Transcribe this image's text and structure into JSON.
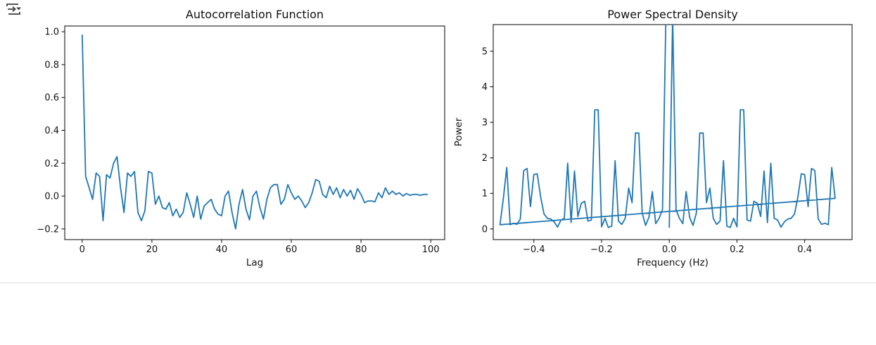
{
  "toolbar": {
    "execute_icon": "execute-cell-dropdown-icon"
  },
  "accent_color": "#1f77b4",
  "chart_data": [
    {
      "type": "line",
      "title": "Autocorrelation Function",
      "xlabel": "Lag",
      "ylabel": "",
      "xlim": [
        -5,
        104
      ],
      "ylim": [
        -0.265,
        1.035
      ],
      "xticks": [
        0,
        20,
        40,
        60,
        80,
        100
      ],
      "xtick_labels": [
        "0",
        "20",
        "40",
        "60",
        "80",
        "100"
      ],
      "yticks": [
        1.0,
        0.8,
        0.6,
        0.4,
        0.2,
        0.0,
        -0.2
      ],
      "ytick_labels": [
        "1.0",
        "0.8",
        "0.6",
        "0.4",
        "0.2",
        "0.0",
        "−0.2"
      ],
      "grid": false,
      "legend": null,
      "line_color": "#1f77b4",
      "x": [
        0,
        1,
        2,
        3,
        4,
        5,
        6,
        7,
        8,
        9,
        10,
        11,
        12,
        13,
        14,
        15,
        16,
        17,
        18,
        19,
        20,
        21,
        22,
        23,
        24,
        25,
        26,
        27,
        28,
        29,
        30,
        31,
        32,
        33,
        34,
        35,
        36,
        37,
        38,
        39,
        40,
        41,
        42,
        43,
        44,
        45,
        46,
        47,
        48,
        49,
        50,
        51,
        52,
        53,
        54,
        55,
        56,
        57,
        58,
        59,
        60,
        61,
        62,
        63,
        64,
        65,
        66,
        67,
        68,
        69,
        70,
        71,
        72,
        73,
        74,
        75,
        76,
        77,
        78,
        79,
        80,
        81,
        82,
        83,
        84,
        85,
        86,
        87,
        88,
        89,
        90,
        91,
        92,
        93,
        94,
        95,
        96,
        97,
        98,
        99
      ],
      "y": [
        0.98,
        0.12,
        0.05,
        -0.02,
        0.14,
        0.12,
        -0.15,
        0.13,
        0.11,
        0.2,
        0.24,
        0.05,
        -0.1,
        0.14,
        0.12,
        0.15,
        -0.1,
        -0.15,
        -0.09,
        0.15,
        0.14,
        -0.05,
        0.0,
        -0.07,
        -0.08,
        -0.04,
        -0.12,
        -0.08,
        -0.13,
        -0.1,
        0.02,
        -0.05,
        -0.13,
        0.0,
        -0.14,
        -0.06,
        -0.04,
        -0.02,
        -0.08,
        -0.11,
        -0.12,
        0.0,
        0.03,
        -0.1,
        -0.2,
        -0.05,
        0.04,
        -0.08,
        -0.145,
        0.0,
        0.03,
        -0.07,
        -0.14,
        -0.02,
        0.05,
        0.07,
        0.07,
        -0.05,
        -0.02,
        0.07,
        0.02,
        -0.02,
        0.0,
        -0.03,
        -0.07,
        -0.04,
        0.02,
        0.1,
        0.09,
        0.01,
        -0.01,
        0.06,
        0.01,
        0.05,
        -0.01,
        0.04,
        0.0,
        0.035,
        -0.02,
        0.045,
        0.01,
        -0.04,
        -0.03,
        -0.03,
        -0.035,
        0.02,
        -0.01,
        0.05,
        0.01,
        0.03,
        0.01,
        0.02,
        0.0,
        0.015,
        0.005,
        0.01,
        0.01,
        0.005,
        0.01,
        0.01
      ]
    },
    {
      "type": "line",
      "title": "Power Spectral Density",
      "xlabel": "Frequency (Hz)",
      "ylabel": "Power",
      "xlim": [
        -0.52,
        0.54
      ],
      "ylim": [
        -0.3,
        5.75
      ],
      "xticks": [
        -0.4,
        -0.2,
        0.0,
        0.2,
        0.4
      ],
      "xtick_labels": [
        "−0.4",
        "−0.2",
        "0.0",
        "0.2",
        "0.4"
      ],
      "yticks": [
        0,
        1,
        2,
        3,
        4,
        5
      ],
      "ytick_labels": [
        "0",
        "1",
        "2",
        "3",
        "4",
        "5"
      ],
      "grid": false,
      "legend": null,
      "line_color": "#1f77b4",
      "note": "Periodogram plotted in FFT frequency order (0..0.49 then -0.5..-0.01); central peaks at ±0.01 are clipped by the top axis; a straight chord connects (0.49, 0.86) to (-0.5, 0.12).",
      "x": [
        0.0,
        0.01,
        0.02,
        0.03,
        0.04,
        0.05,
        0.06,
        0.07,
        0.08,
        0.09,
        0.1,
        0.11,
        0.12,
        0.13,
        0.14,
        0.15,
        0.16,
        0.17,
        0.18,
        0.19,
        0.2,
        0.21,
        0.22,
        0.23,
        0.24,
        0.25,
        0.26,
        0.27,
        0.28,
        0.29,
        0.3,
        0.31,
        0.32,
        0.33,
        0.34,
        0.35,
        0.36,
        0.37,
        0.38,
        0.39,
        0.4,
        0.41,
        0.42,
        0.43,
        0.44,
        0.45,
        0.46,
        0.47,
        0.48,
        0.49,
        -0.5,
        -0.49,
        -0.48,
        -0.47,
        -0.46,
        -0.45,
        -0.44,
        -0.43,
        -0.42,
        -0.41,
        -0.4,
        -0.39,
        -0.38,
        -0.37,
        -0.36,
        -0.35,
        -0.34,
        -0.33,
        -0.32,
        -0.31,
        -0.3,
        -0.29,
        -0.28,
        -0.27,
        -0.26,
        -0.25,
        -0.24,
        -0.23,
        -0.22,
        -0.21,
        -0.2,
        -0.19,
        -0.18,
        -0.17,
        -0.16,
        -0.15,
        -0.14,
        -0.13,
        -0.12,
        -0.11,
        -0.1,
        -0.09,
        -0.08,
        -0.07,
        -0.06,
        -0.05,
        -0.04,
        -0.03,
        -0.02,
        -0.01
      ],
      "y": [
        0.05,
        6.0,
        0.55,
        0.3,
        0.15,
        1.05,
        0.33,
        0.1,
        0.45,
        2.7,
        2.7,
        0.74,
        1.15,
        0.3,
        0.13,
        0.22,
        1.92,
        0.08,
        0.04,
        0.3,
        0.06,
        3.35,
        3.35,
        0.25,
        0.22,
        0.78,
        0.72,
        0.35,
        1.63,
        0.18,
        1.85,
        0.3,
        0.25,
        0.05,
        0.2,
        0.28,
        0.3,
        0.42,
        0.9,
        1.55,
        1.53,
        0.63,
        1.7,
        1.64,
        0.28,
        0.13,
        0.16,
        0.12,
        1.73,
        0.86,
        0.12,
        0.86,
        1.73,
        0.12,
        0.16,
        0.13,
        0.28,
        1.64,
        1.7,
        0.63,
        1.53,
        1.55,
        0.9,
        0.42,
        0.3,
        0.28,
        0.2,
        0.05,
        0.25,
        0.3,
        1.85,
        0.18,
        1.63,
        0.35,
        0.72,
        0.78,
        0.22,
        0.25,
        3.35,
        3.35,
        0.06,
        0.3,
        0.04,
        0.08,
        1.92,
        0.22,
        0.13,
        0.3,
        1.15,
        0.74,
        2.7,
        2.7,
        0.45,
        0.1,
        0.33,
        1.05,
        0.15,
        0.3,
        0.55,
        6.0
      ]
    }
  ]
}
